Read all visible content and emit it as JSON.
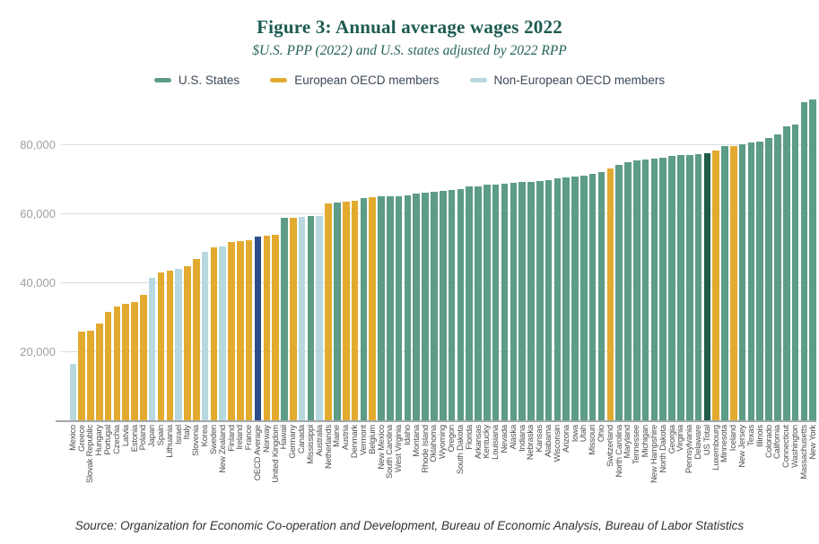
{
  "source_note": "Source: Organization for Economic Co-operation and Development, Bureau of Economic Analysis, Bureau of Labor Statistics",
  "chart_data": {
    "type": "bar",
    "title": "Figure 3: Annual average wages 2022",
    "subtitle": "$U.S. PPP (2022) and U.S. states adjusted by 2022 RPP",
    "ylabel": "",
    "xlabel": "",
    "ylim": [
      0,
      95000
    ],
    "yticks": [
      20000,
      40000,
      60000,
      80000
    ],
    "grid": true,
    "legend_position": "top",
    "colors": {
      "us-state": "#5d9c86",
      "european-oecd": "#e2ab30",
      "non-european-oecd": "#b8d8e0",
      "oecd-average": "#2b4d8a",
      "us-total": "#1e5c49"
    },
    "legend": [
      {
        "label": "U.S. States",
        "group": "us-state"
      },
      {
        "label": "European OECD members",
        "group": "european-oecd"
      },
      {
        "label": "Non-European OECD members",
        "group": "non-european-oecd"
      }
    ],
    "bars": [
      {
        "label": "Mexico",
        "value": 16300,
        "group": "non-european-oecd"
      },
      {
        "label": "Greece",
        "value": 25700,
        "group": "european-oecd"
      },
      {
        "label": "Slovak Republic",
        "value": 26000,
        "group": "european-oecd"
      },
      {
        "label": "Hungary",
        "value": 28100,
        "group": "european-oecd"
      },
      {
        "label": "Portugal",
        "value": 31500,
        "group": "european-oecd"
      },
      {
        "label": "Czechia",
        "value": 33100,
        "group": "european-oecd"
      },
      {
        "label": "Latvia",
        "value": 33900,
        "group": "european-oecd"
      },
      {
        "label": "Estonia",
        "value": 34300,
        "group": "european-oecd"
      },
      {
        "label": "Poland",
        "value": 36500,
        "group": "european-oecd"
      },
      {
        "label": "Japan",
        "value": 41400,
        "group": "non-european-oecd"
      },
      {
        "label": "Spain",
        "value": 42800,
        "group": "european-oecd"
      },
      {
        "label": "Lithuania",
        "value": 43500,
        "group": "european-oecd"
      },
      {
        "label": "Israel",
        "value": 44000,
        "group": "non-european-oecd"
      },
      {
        "label": "Italy",
        "value": 44800,
        "group": "european-oecd"
      },
      {
        "label": "Slovenia",
        "value": 46800,
        "group": "european-oecd"
      },
      {
        "label": "Korea",
        "value": 48800,
        "group": "non-european-oecd"
      },
      {
        "label": "Sweden",
        "value": 50300,
        "group": "european-oecd"
      },
      {
        "label": "New Zealand",
        "value": 50500,
        "group": "non-european-oecd"
      },
      {
        "label": "Finland",
        "value": 51700,
        "group": "european-oecd"
      },
      {
        "label": "Ireland",
        "value": 52000,
        "group": "european-oecd"
      },
      {
        "label": "France",
        "value": 52400,
        "group": "european-oecd"
      },
      {
        "label": "OECD Average",
        "value": 53300,
        "group": "oecd-average"
      },
      {
        "label": "Norway",
        "value": 53700,
        "group": "european-oecd"
      },
      {
        "label": "United Kingdom",
        "value": 53900,
        "group": "european-oecd"
      },
      {
        "label": "Hawaii",
        "value": 58700,
        "group": "us-state"
      },
      {
        "label": "Germany",
        "value": 58900,
        "group": "european-oecd"
      },
      {
        "label": "Canada",
        "value": 59000,
        "group": "non-european-oecd"
      },
      {
        "label": "Mississippi",
        "value": 59200,
        "group": "us-state"
      },
      {
        "label": "Australia",
        "value": 59400,
        "group": "non-european-oecd"
      },
      {
        "label": "Netherlands",
        "value": 62900,
        "group": "european-oecd"
      },
      {
        "label": "Maine",
        "value": 63300,
        "group": "us-state"
      },
      {
        "label": "Austria",
        "value": 63500,
        "group": "european-oecd"
      },
      {
        "label": "Denmark",
        "value": 63800,
        "group": "european-oecd"
      },
      {
        "label": "Vermont",
        "value": 64400,
        "group": "us-state"
      },
      {
        "label": "Belgium",
        "value": 64700,
        "group": "european-oecd"
      },
      {
        "label": "New Mexico",
        "value": 64900,
        "group": "us-state"
      },
      {
        "label": "South Carolina",
        "value": 65000,
        "group": "us-state"
      },
      {
        "label": "West Virginia",
        "value": 65100,
        "group": "us-state"
      },
      {
        "label": "Idaho",
        "value": 65300,
        "group": "us-state"
      },
      {
        "label": "Montana",
        "value": 65700,
        "group": "us-state"
      },
      {
        "label": "Rhode Island",
        "value": 66000,
        "group": "us-state"
      },
      {
        "label": "Oklahoma",
        "value": 66200,
        "group": "us-state"
      },
      {
        "label": "Wyoming",
        "value": 66500,
        "group": "us-state"
      },
      {
        "label": "Oregon",
        "value": 66900,
        "group": "us-state"
      },
      {
        "label": "South Dakota",
        "value": 67200,
        "group": "us-state"
      },
      {
        "label": "Florida",
        "value": 67800,
        "group": "us-state"
      },
      {
        "label": "Arkansas",
        "value": 68000,
        "group": "us-state"
      },
      {
        "label": "Kentucky",
        "value": 68300,
        "group": "us-state"
      },
      {
        "label": "Louisiana",
        "value": 68500,
        "group": "us-state"
      },
      {
        "label": "Nevada",
        "value": 68700,
        "group": "us-state"
      },
      {
        "label": "Alaska",
        "value": 68900,
        "group": "us-state"
      },
      {
        "label": "Indiana",
        "value": 69100,
        "group": "us-state"
      },
      {
        "label": "Nebraska",
        "value": 69300,
        "group": "us-state"
      },
      {
        "label": "Kansas",
        "value": 69500,
        "group": "us-state"
      },
      {
        "label": "Alabama",
        "value": 69800,
        "group": "us-state"
      },
      {
        "label": "Wisconsin",
        "value": 70100,
        "group": "us-state"
      },
      {
        "label": "Arizona",
        "value": 70500,
        "group": "us-state"
      },
      {
        "label": "Iowa",
        "value": 70800,
        "group": "us-state"
      },
      {
        "label": "Utah",
        "value": 71000,
        "group": "us-state"
      },
      {
        "label": "Missouri",
        "value": 71600,
        "group": "us-state"
      },
      {
        "label": "Ohio",
        "value": 72000,
        "group": "us-state"
      },
      {
        "label": "Switzerland",
        "value": 73200,
        "group": "european-oecd"
      },
      {
        "label": "North Carolina",
        "value": 74200,
        "group": "us-state"
      },
      {
        "label": "Maryland",
        "value": 74800,
        "group": "us-state"
      },
      {
        "label": "Tennessee",
        "value": 75300,
        "group": "us-state"
      },
      {
        "label": "Michigan",
        "value": 75600,
        "group": "us-state"
      },
      {
        "label": "New Hampshire",
        "value": 76000,
        "group": "us-state"
      },
      {
        "label": "North Dakota",
        "value": 76300,
        "group": "us-state"
      },
      {
        "label": "Georgia",
        "value": 76700,
        "group": "us-state"
      },
      {
        "label": "Virginia",
        "value": 77000,
        "group": "us-state"
      },
      {
        "label": "Pennsylvania",
        "value": 77100,
        "group": "us-state"
      },
      {
        "label": "Delaware",
        "value": 77300,
        "group": "us-state"
      },
      {
        "label": "US Total",
        "value": 77400,
        "group": "us-total"
      },
      {
        "label": "Luxembourg",
        "value": 78400,
        "group": "european-oecd"
      },
      {
        "label": "Minnesota",
        "value": 79500,
        "group": "us-state"
      },
      {
        "label": "Iceland",
        "value": 79500,
        "group": "european-oecd"
      },
      {
        "label": "New Jersey",
        "value": 80200,
        "group": "us-state"
      },
      {
        "label": "Texas",
        "value": 80500,
        "group": "us-state"
      },
      {
        "label": "Illinois",
        "value": 80800,
        "group": "us-state"
      },
      {
        "label": "Colorado",
        "value": 81800,
        "group": "us-state"
      },
      {
        "label": "California",
        "value": 83000,
        "group": "us-state"
      },
      {
        "label": "Connecticut",
        "value": 85300,
        "group": "us-state"
      },
      {
        "label": "Washington",
        "value": 85700,
        "group": "us-state"
      },
      {
        "label": "Massachusetts",
        "value": 92300,
        "group": "us-state"
      },
      {
        "label": "New York",
        "value": 93000,
        "group": "us-state"
      }
    ]
  }
}
